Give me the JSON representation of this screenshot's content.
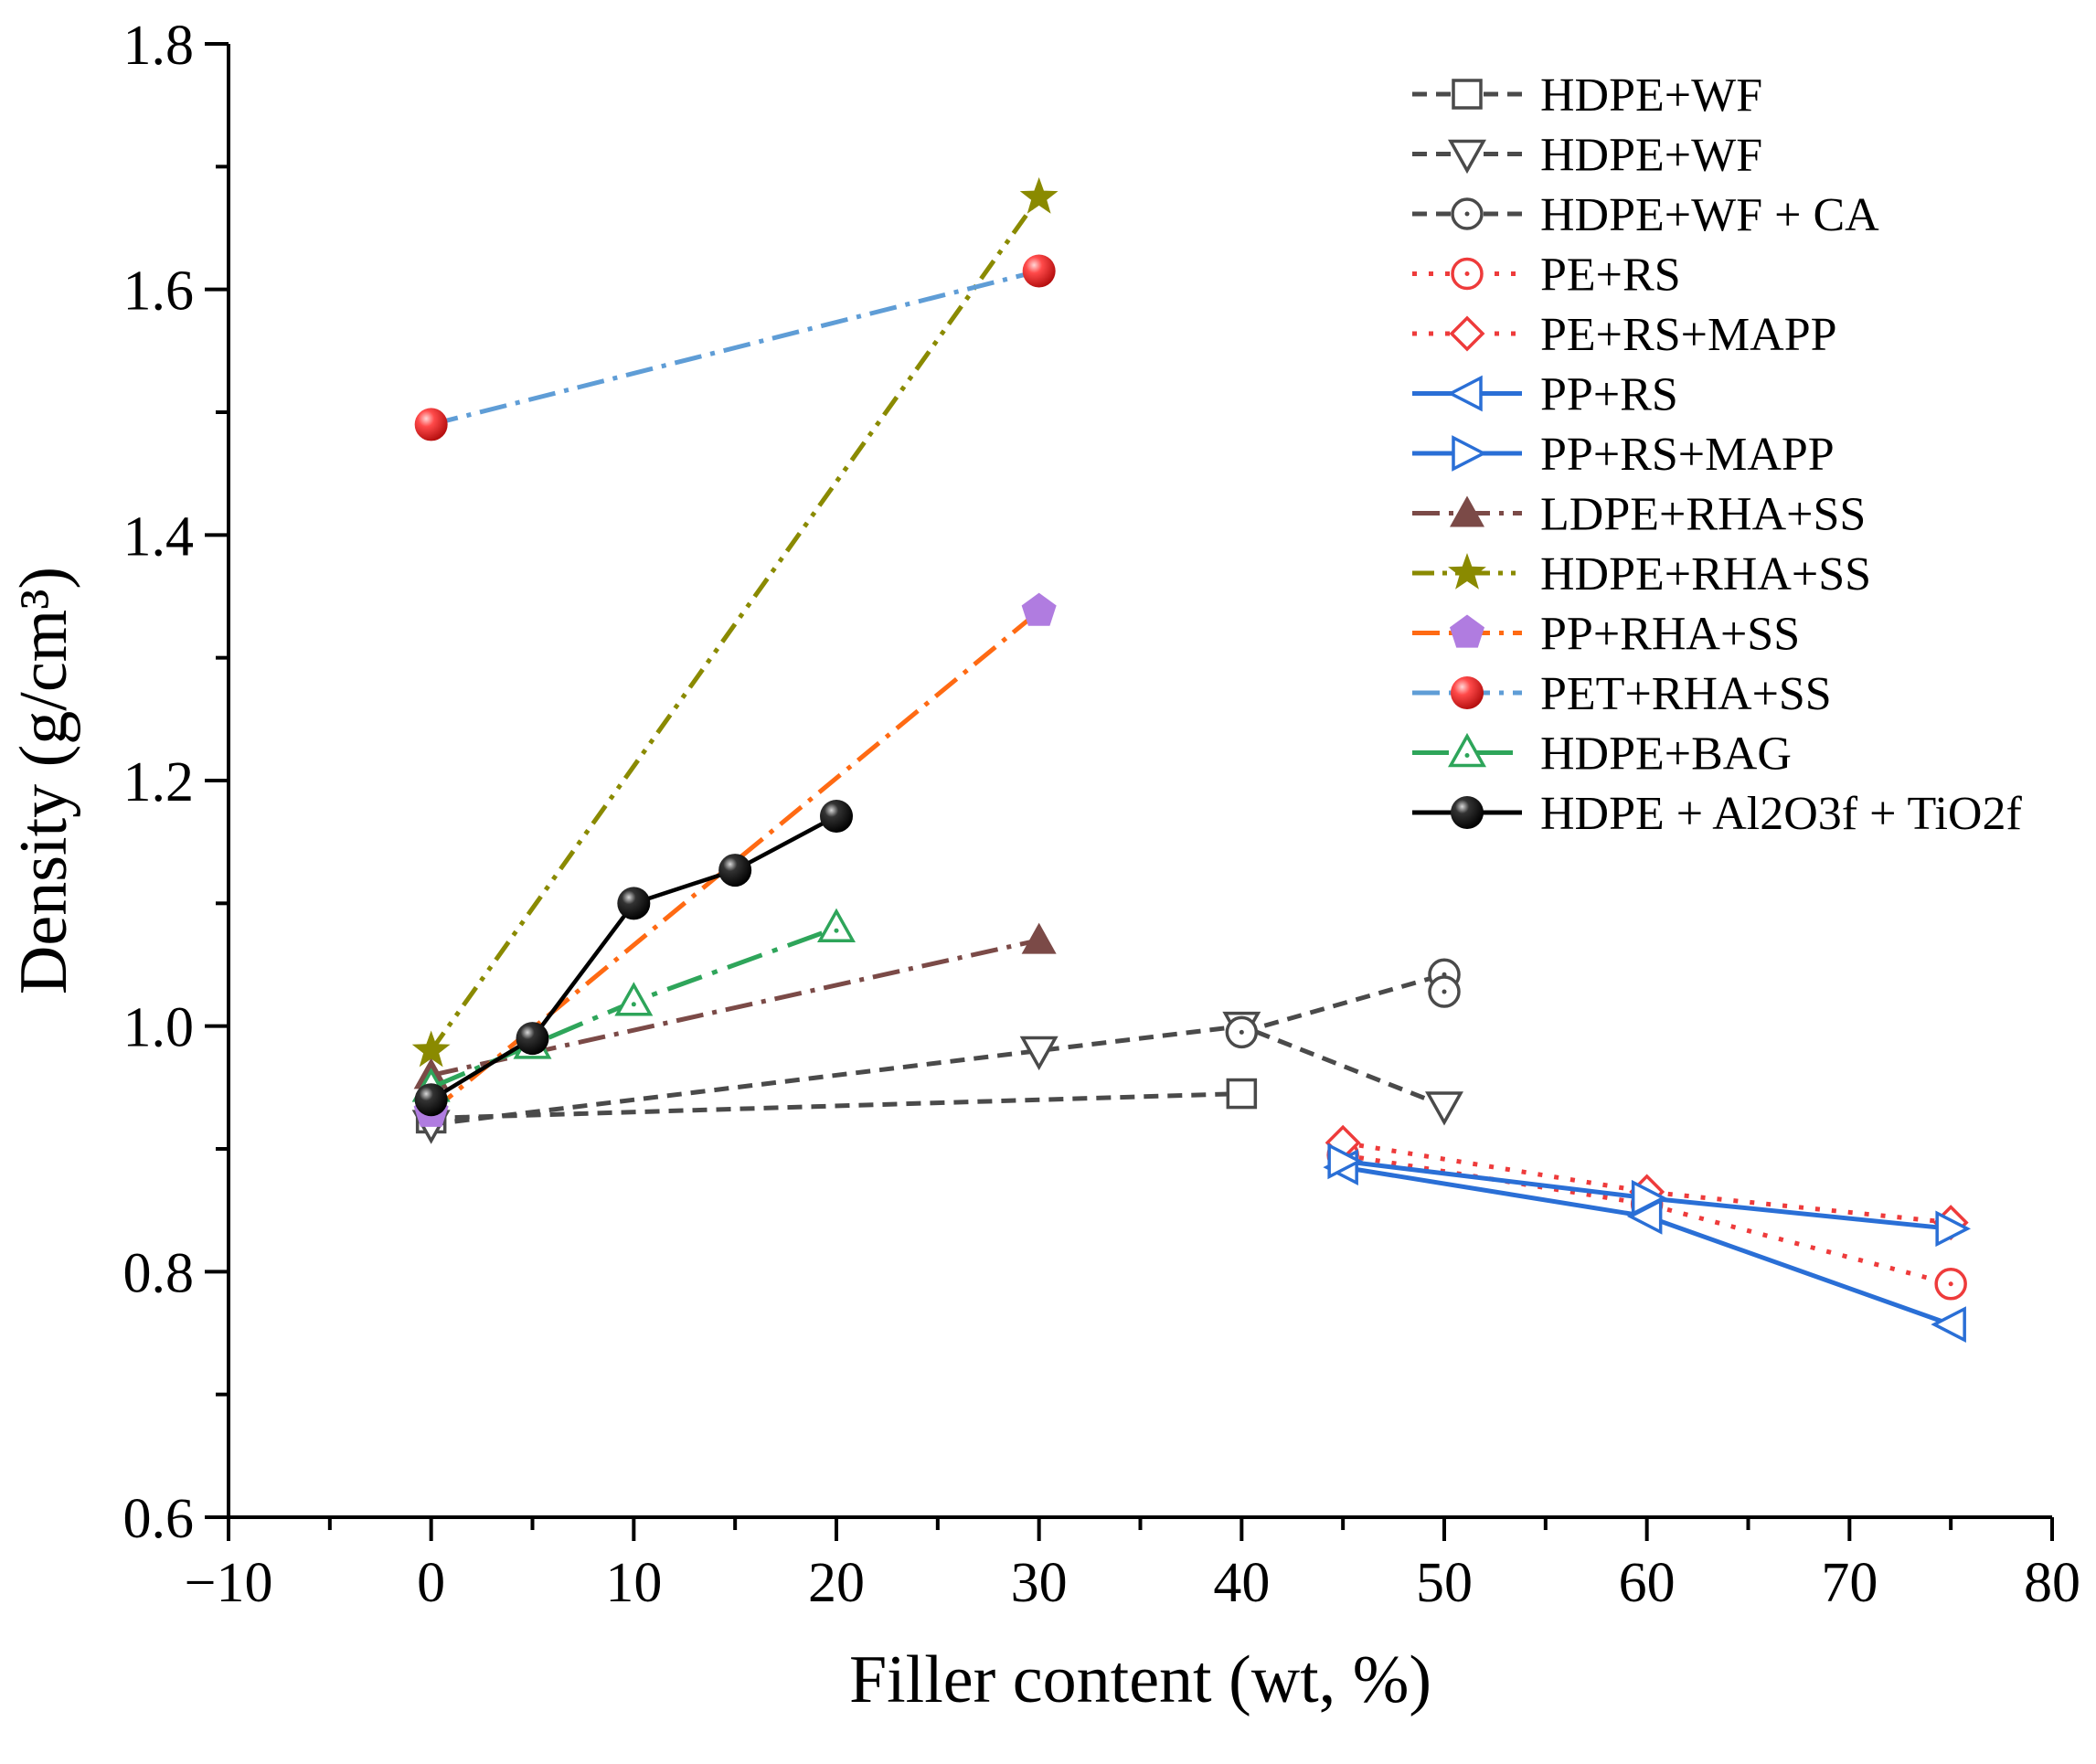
{
  "chart_data": {
    "type": "line",
    "title": "",
    "xlabel": "Filler content (wt, %)",
    "ylabel": "Density (g/cm³)",
    "xlim": [
      -10,
      80
    ],
    "ylim": [
      0.6,
      1.8
    ],
    "xticks": [
      -10,
      0,
      10,
      20,
      30,
      40,
      50,
      60,
      70,
      80
    ],
    "xtick_labels": [
      "−10",
      "0",
      "10",
      "20",
      "30",
      "40",
      "50",
      "60",
      "70",
      "80"
    ],
    "yticks": [
      0.6,
      0.8,
      1.0,
      1.2,
      1.4,
      1.6,
      1.8
    ],
    "ytick_labels": [
      "0.6",
      "0.8",
      "1.0",
      "1.2",
      "1.4",
      "1.6",
      "1.8"
    ],
    "grid": false,
    "legend_position": "top-right",
    "series": [
      {
        "name": "HDPE+WF",
        "x": [
          0,
          40
        ],
        "y": [
          0.925,
          0.945
        ],
        "color": "#4a4a4a",
        "dash": "short-dash",
        "marker": "square-open"
      },
      {
        "name": "HDPE+WF",
        "x": [
          0,
          30,
          40,
          50
        ],
        "y": [
          0.92,
          0.98,
          1.0,
          0.935
        ],
        "color": "#4a4a4a",
        "dash": "short-dash",
        "marker": "triangle-down-open"
      },
      {
        "name": "HDPE+WF + CA",
        "x": [
          40,
          50,
          50
        ],
        "y": [
          0.995,
          1.042,
          1.028
        ],
        "color": "#4a4a4a",
        "dash": "short-dash",
        "marker": "circle-dot-open"
      },
      {
        "name": "PE+RS",
        "x": [
          45,
          60,
          75
        ],
        "y": [
          0.895,
          0.855,
          0.79
        ],
        "color": "#ee3b3b",
        "dash": "dotted",
        "marker": "circle-dot-open"
      },
      {
        "name": "PE+RS+MAPP",
        "x": [
          45,
          60,
          75
        ],
        "y": [
          0.905,
          0.865,
          0.84
        ],
        "color": "#ee3b3b",
        "dash": "dotted",
        "marker": "diamond-open"
      },
      {
        "name": "PP+RS",
        "x": [
          45,
          60,
          75
        ],
        "y": [
          0.885,
          0.845,
          0.757
        ],
        "color": "#2a6fd6",
        "dash": "solid",
        "marker": "triangle-left-open"
      },
      {
        "name": "PP+RS+MAPP",
        "x": [
          45,
          60,
          75
        ],
        "y": [
          0.89,
          0.86,
          0.835
        ],
        "color": "#2a6fd6",
        "dash": "solid",
        "marker": "triangle-right-open"
      },
      {
        "name": "LDPE+RHA+SS",
        "x": [
          0,
          30
        ],
        "y": [
          0.96,
          1.07
        ],
        "color": "#7b4a47",
        "dash": "dash-dot",
        "marker": "triangle-up-filled"
      },
      {
        "name": "HDPE+RHA+SS",
        "x": [
          0,
          30
        ],
        "y": [
          0.98,
          1.675
        ],
        "color": "#8a8a00",
        "dash": "dash-dot-dot",
        "marker": "star-filled"
      },
      {
        "name": "PP+RHA+SS",
        "x": [
          0,
          30
        ],
        "y": [
          0.93,
          1.338
        ],
        "color": "#ff6a13",
        "dash": "dash-dot",
        "marker": "pentagon-filled"
      },
      {
        "name": "PET+RHA+SS",
        "x": [
          0,
          30
        ],
        "y": [
          1.49,
          1.615
        ],
        "color": "#5f9dd6",
        "dash": "dash-dot",
        "marker": "sphere-red"
      },
      {
        "name": "HDPE+BAG",
        "x": [
          0,
          5,
          10,
          20
        ],
        "y": [
          0.95,
          0.985,
          1.02,
          1.08
        ],
        "color": "#2ea55a",
        "dash": "long-dash-dot",
        "marker": "triangle-up-dot-open"
      },
      {
        "name": "HDPE + Al2O3f + TiO2f",
        "x": [
          0,
          5,
          10,
          15,
          20
        ],
        "y": [
          0.94,
          0.99,
          1.1,
          1.127,
          1.171
        ],
        "color": "#000000",
        "dash": "solid",
        "marker": "sphere-black"
      }
    ]
  }
}
